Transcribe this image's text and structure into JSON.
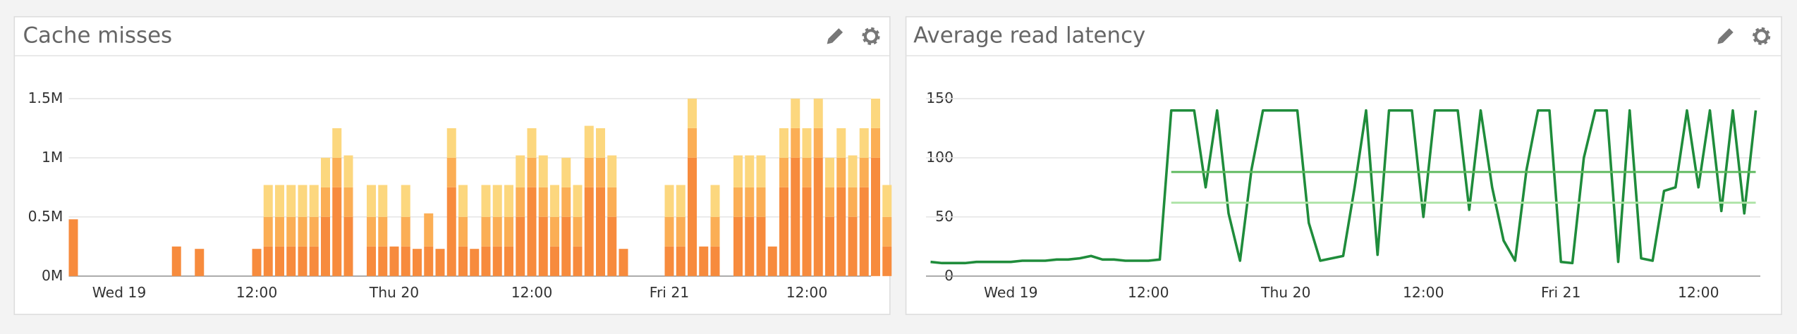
{
  "chart_data": [
    {
      "type": "bar",
      "stacked": true,
      "title": "Cache misses",
      "categories": [
        null,
        null,
        null,
        null,
        "Wed 19",
        null,
        null,
        null,
        null,
        null,
        null,
        null,
        null,
        null,
        null,
        null,
        "12:00",
        null,
        null,
        null,
        null,
        null,
        null,
        null,
        null,
        null,
        null,
        null,
        "Thu 20",
        null,
        null,
        null,
        null,
        null,
        null,
        null,
        null,
        null,
        null,
        null,
        "12:00",
        null,
        null,
        null,
        null,
        null,
        null,
        null,
        null,
        null,
        null,
        null,
        "Fri 21",
        null,
        null,
        null,
        null,
        null,
        null,
        null,
        null,
        null,
        null,
        null,
        "12:00",
        null,
        null,
        null,
        null,
        null,
        null,
        null
      ],
      "series": [
        {
          "color": "#f78b3d",
          "values": [
            480000,
            0,
            0,
            0,
            0,
            0,
            0,
            0,
            0,
            250000,
            0,
            230000,
            0,
            0,
            0,
            0,
            230000,
            250000,
            250000,
            250000,
            250000,
            250000,
            500000,
            750000,
            500000,
            0,
            250000,
            250000,
            250000,
            250000,
            230000,
            250000,
            230000,
            750000,
            250000,
            230000,
            250000,
            250000,
            250000,
            500000,
            750000,
            500000,
            250000,
            500000,
            250000,
            750000,
            750000,
            500000,
            230000,
            0,
            0,
            0,
            250000,
            250000,
            1000000,
            250000,
            250000,
            0,
            500000,
            500000,
            500000,
            250000,
            750000,
            1000000,
            750000,
            1000000,
            500000,
            750000,
            500000,
            750000,
            1000000,
            250000
          ]
        },
        {
          "color": "#fbae55",
          "values": [
            0,
            0,
            0,
            0,
            0,
            0,
            0,
            0,
            0,
            0,
            0,
            0,
            0,
            0,
            0,
            0,
            0,
            250000,
            250000,
            250000,
            250000,
            250000,
            250000,
            250000,
            250000,
            0,
            250000,
            250000,
            0,
            250000,
            0,
            280000,
            0,
            250000,
            250000,
            0,
            250000,
            250000,
            250000,
            250000,
            250000,
            250000,
            250000,
            250000,
            250000,
            250000,
            250000,
            250000,
            0,
            0,
            0,
            0,
            250000,
            250000,
            250000,
            0,
            250000,
            0,
            250000,
            250000,
            250000,
            0,
            250000,
            250000,
            250000,
            250000,
            250000,
            250000,
            250000,
            250000,
            250000,
            250000
          ]
        },
        {
          "color": "#fcd77e",
          "values": [
            0,
            0,
            0,
            0,
            0,
            0,
            0,
            0,
            0,
            0,
            0,
            0,
            0,
            0,
            0,
            0,
            0,
            270000,
            270000,
            270000,
            270000,
            270000,
            250000,
            250000,
            270000,
            0,
            270000,
            270000,
            0,
            270000,
            0,
            0,
            0,
            250000,
            270000,
            0,
            270000,
            270000,
            270000,
            270000,
            250000,
            270000,
            270000,
            250000,
            270000,
            270000,
            250000,
            270000,
            0,
            0,
            0,
            0,
            270000,
            270000,
            250000,
            0,
            270000,
            0,
            270000,
            270000,
            270000,
            0,
            250000,
            250000,
            250000,
            250000,
            250000,
            250000,
            270000,
            250000,
            250000,
            270000
          ]
        }
      ],
      "ylim": [
        0,
        1650000
      ],
      "yticks": [
        {
          "value": 0,
          "label": "0M"
        },
        {
          "value": 500000,
          "label": "0.5M"
        },
        {
          "value": 1000000,
          "label": "1M"
        },
        {
          "value": 1500000,
          "label": "1.5M"
        }
      ],
      "grid": true
    },
    {
      "type": "line",
      "title": "Average read latency",
      "categories": [
        null,
        null,
        null,
        null,
        null,
        null,
        null,
        "Wed 19",
        null,
        null,
        null,
        null,
        null,
        null,
        null,
        null,
        null,
        null,
        null,
        "12:00",
        null,
        null,
        null,
        null,
        null,
        null,
        null,
        null,
        null,
        null,
        null,
        "Thu 20",
        null,
        null,
        null,
        null,
        null,
        null,
        null,
        null,
        null,
        null,
        null,
        "12:00",
        null,
        null,
        null,
        null,
        null,
        null,
        null,
        null,
        null,
        null,
        null,
        "Fri 21",
        null,
        null,
        null,
        null,
        null,
        null,
        null,
        null,
        null,
        null,
        null,
        "12:00",
        null,
        null,
        null,
        null,
        null
      ],
      "series": [
        {
          "color": "#1f8c3b",
          "width": 2.2,
          "values": [
            12,
            11,
            11,
            11,
            12,
            12,
            12,
            12,
            13,
            13,
            13,
            14,
            14,
            15,
            17,
            14,
            14,
            13,
            13,
            13,
            14,
            140,
            140,
            140,
            75,
            140,
            53,
            13,
            90,
            140,
            140,
            140,
            140,
            45,
            13,
            15,
            17,
            75,
            140,
            18,
            140,
            140,
            140,
            50,
            140,
            140,
            140,
            56,
            140,
            75,
            30,
            13,
            90,
            140,
            140,
            12,
            11,
            100,
            140,
            140,
            12,
            140,
            15,
            13,
            72,
            75,
            140,
            75,
            140,
            55,
            140,
            53,
            140
          ]
        },
        {
          "color": "#5cb85c",
          "width": 1.8,
          "values": [
            null,
            null,
            null,
            null,
            null,
            null,
            null,
            null,
            null,
            null,
            null,
            null,
            null,
            null,
            null,
            null,
            null,
            null,
            null,
            null,
            null,
            88,
            88,
            88,
            88,
            88,
            88,
            88,
            88,
            88,
            88,
            88,
            88,
            88,
            88,
            88,
            88,
            88,
            88,
            88,
            88,
            88,
            88,
            88,
            88,
            88,
            88,
            88,
            88,
            88,
            88,
            88,
            88,
            88,
            88,
            88,
            88,
            88,
            88,
            88,
            88,
            88,
            88,
            88,
            88,
            88,
            88,
            88,
            88,
            88,
            88,
            88,
            88
          ]
        },
        {
          "color": "#ade3a6",
          "width": 1.8,
          "values": [
            null,
            null,
            null,
            null,
            null,
            null,
            null,
            null,
            null,
            null,
            null,
            null,
            null,
            null,
            null,
            null,
            null,
            null,
            null,
            null,
            null,
            62,
            62,
            62,
            62,
            62,
            62,
            62,
            62,
            62,
            62,
            62,
            62,
            62,
            62,
            62,
            62,
            62,
            62,
            62,
            62,
            62,
            62,
            62,
            62,
            62,
            62,
            62,
            62,
            62,
            62,
            62,
            62,
            62,
            62,
            62,
            62,
            62,
            62,
            62,
            62,
            62,
            62,
            62,
            62,
            62,
            62,
            62,
            62,
            62,
            62,
            62,
            62
          ]
        }
      ],
      "ylim": [
        0,
        165
      ],
      "yticks": [
        0,
        50,
        100,
        150
      ],
      "grid": true
    }
  ]
}
